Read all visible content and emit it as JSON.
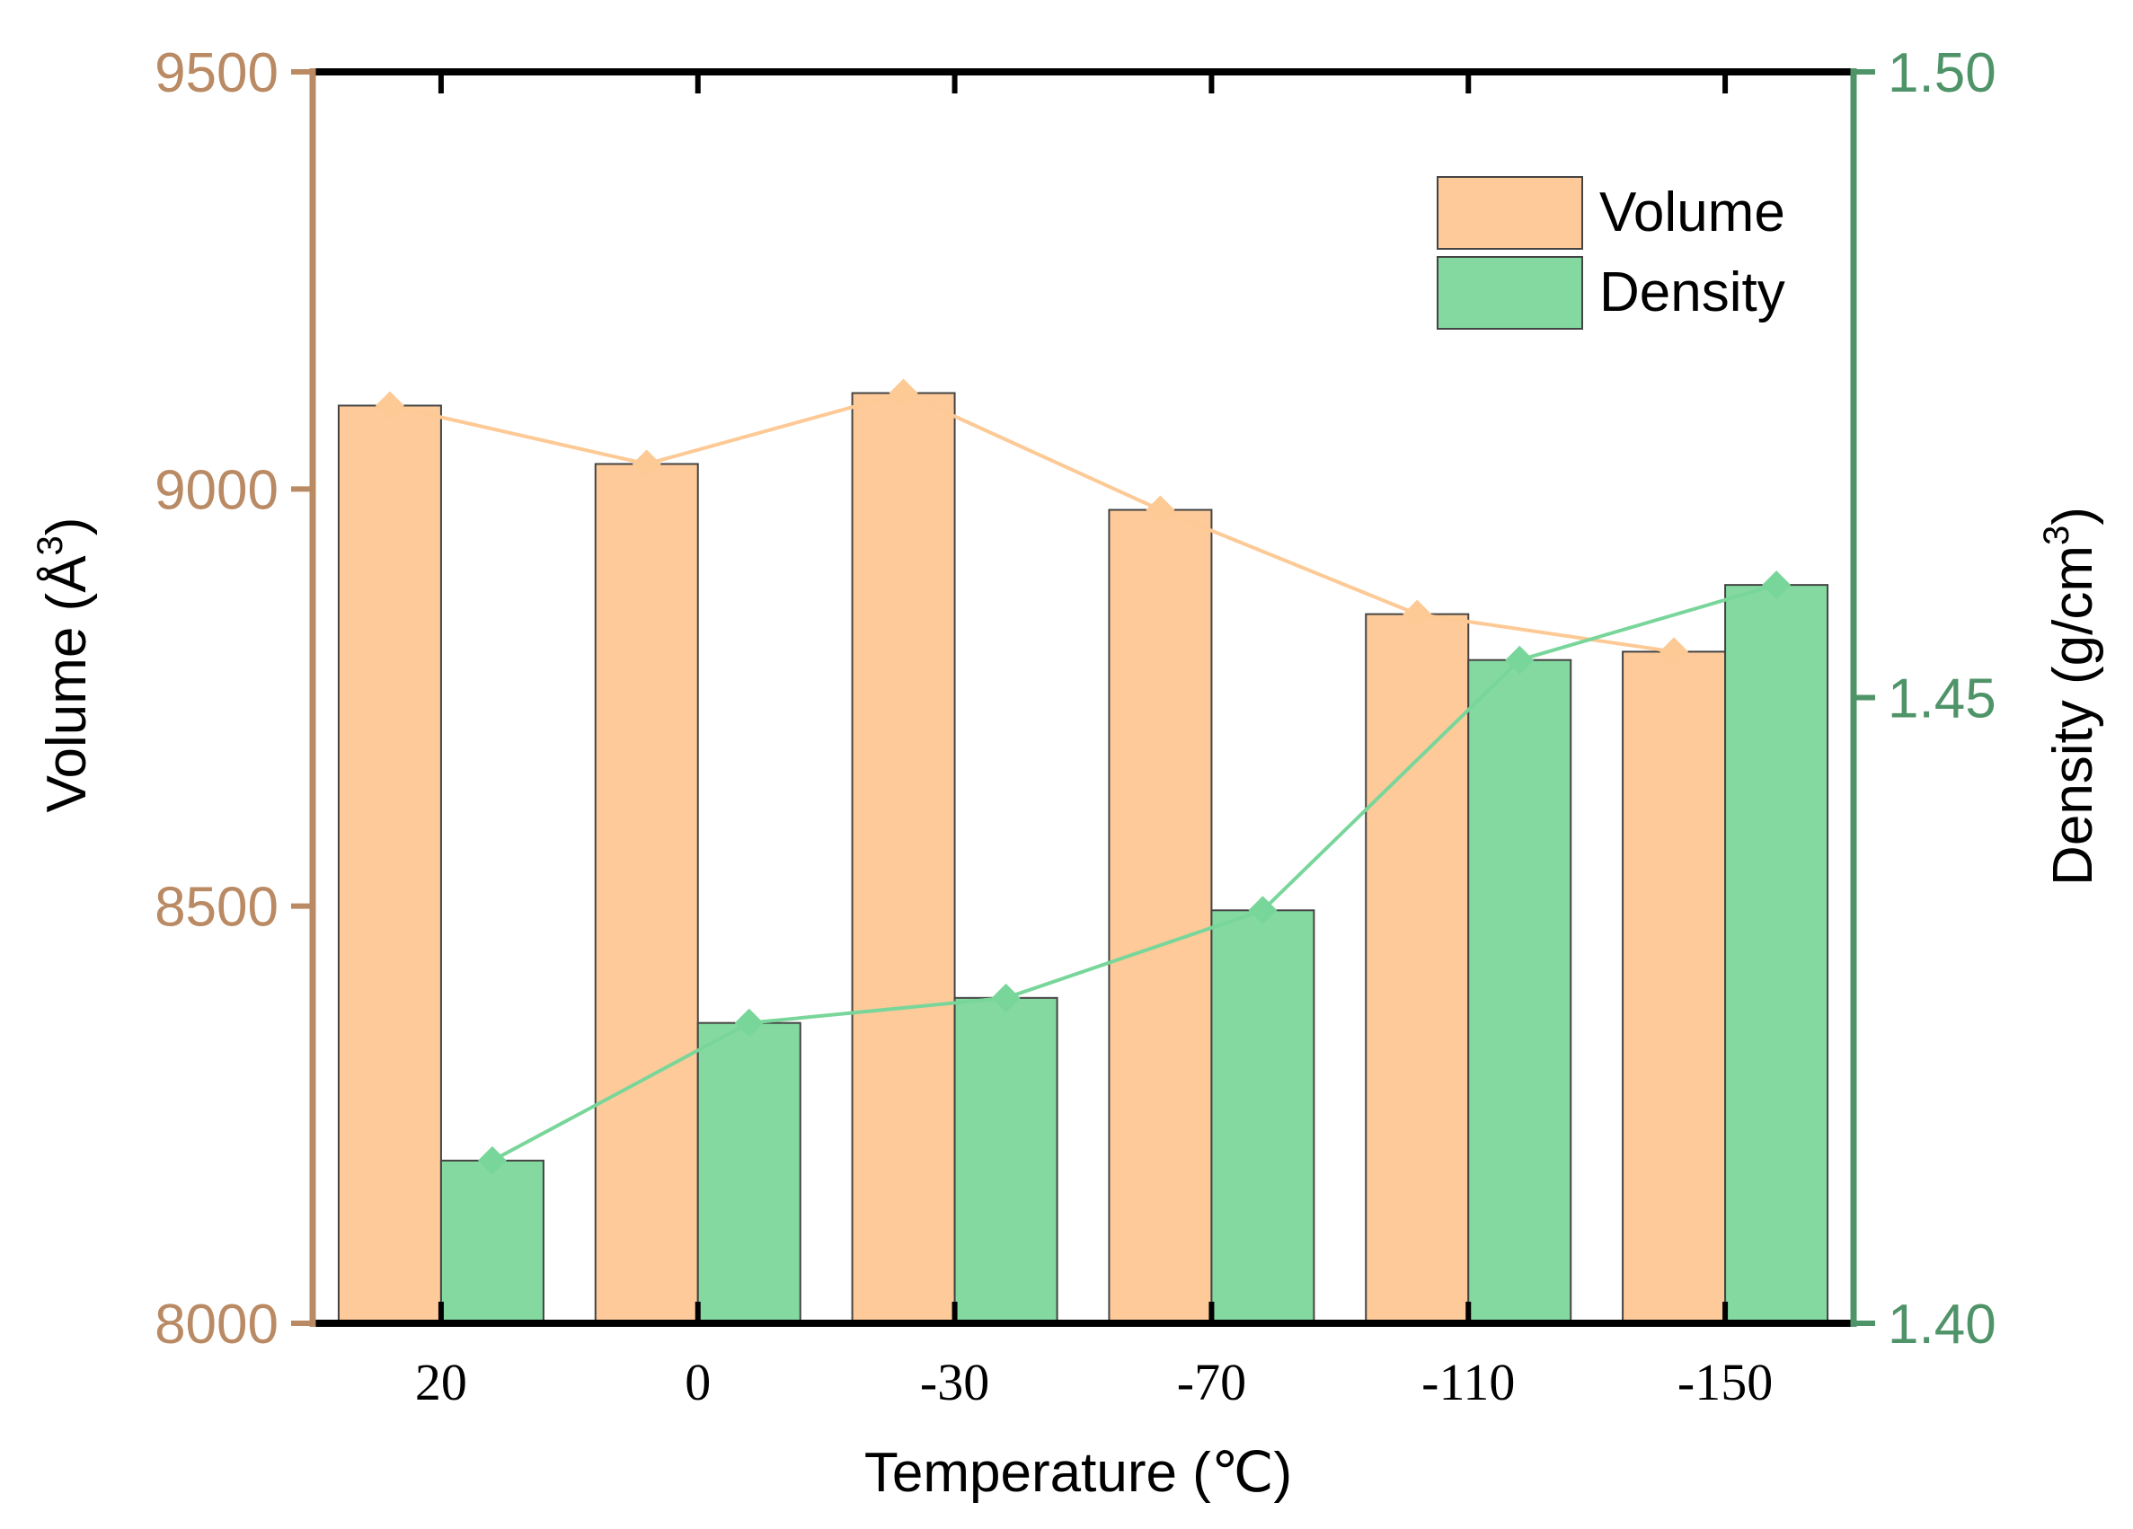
{
  "chart_data": {
    "type": "bar",
    "categories": [
      "20",
      "0",
      "-30",
      "-70",
      "-110",
      "-150"
    ],
    "series": [
      {
        "name": "Volume",
        "axis": "left",
        "values": [
          9100,
          9030,
          9115,
          8975,
          8850,
          8805
        ],
        "color": "#FECA99",
        "line_color": "#FDC995"
      },
      {
        "name": "Density",
        "axis": "right",
        "values": [
          1.413,
          1.424,
          1.426,
          1.433,
          1.453,
          1.459
        ],
        "color": "#84D9A0",
        "line_color": "#79D69A"
      }
    ],
    "xlabel": "Temperature (℃)",
    "ylabel_left_main": "Volume (Å",
    "ylabel_left_sup": "3",
    "ylabel_left_end": ")",
    "ylabel_right_main": "Density (g/cm",
    "ylabel_right_sup": "3",
    "ylabel_right_end": ")",
    "ylim_left": [
      8000,
      9500
    ],
    "ylim_right": [
      1.4,
      1.5
    ],
    "yticks_left": [
      "8000",
      "8500",
      "9000",
      "9500"
    ],
    "yticks_right": [
      "1.40",
      "1.45",
      "1.50"
    ],
    "left_axis_color": "#B98A63",
    "right_axis_color": "#4F9468",
    "legend": {
      "position": "top-right",
      "entries": [
        "Volume",
        "Density"
      ]
    },
    "grid": false
  }
}
